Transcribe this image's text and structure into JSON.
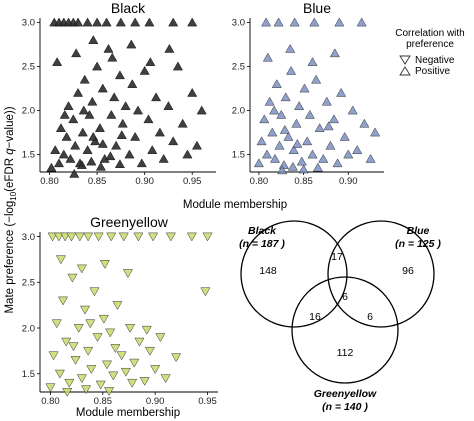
{
  "figure": {
    "ylabel_main": "Mate preference (−log",
    "ylabel_sub": "10",
    "ylabel_end": "(eFDR ",
    "ylabel_q": "q",
    "ylabel_tail": "−value))",
    "xlabel_top": "Module membership",
    "xlabel_bottom": "Module membership"
  },
  "legend": {
    "title_line1": "Correlation with",
    "title_line2": "preference",
    "items": [
      {
        "label": "Negative",
        "symbol": "triangle-down-outline"
      },
      {
        "label": "Positive",
        "symbol": "triangle-up-outline"
      }
    ]
  },
  "chart_data": [
    {
      "type": "scatter",
      "title": "Black",
      "xlabel": "Module membership",
      "ylabel": "Mate preference (−log10(eFDR q−value))",
      "xlim": [
        0.79,
        0.975
      ],
      "ylim": [
        1.3,
        3.05
      ],
      "xticks": [
        "0.80",
        "0.85",
        "0.90",
        "0.95"
      ],
      "yticks": [
        "1.5",
        "2.0",
        "2.5",
        "3.0"
      ],
      "color": "#2b2b2b",
      "points": [
        {
          "x": 0.802,
          "y": 1.35
        },
        {
          "x": 0.806,
          "y": 1.55
        },
        {
          "x": 0.81,
          "y": 1.4
        },
        {
          "x": 0.812,
          "y": 1.8
        },
        {
          "x": 0.815,
          "y": 1.5
        },
        {
          "x": 0.818,
          "y": 1.7
        },
        {
          "x": 0.82,
          "y": 2.05
        },
        {
          "x": 0.822,
          "y": 1.45
        },
        {
          "x": 0.825,
          "y": 1.9
        },
        {
          "x": 0.827,
          "y": 1.6
        },
        {
          "x": 0.83,
          "y": 2.2
        },
        {
          "x": 0.832,
          "y": 1.4
        },
        {
          "x": 0.835,
          "y": 1.75
        },
        {
          "x": 0.837,
          "y": 2.35
        },
        {
          "x": 0.84,
          "y": 1.55
        },
        {
          "x": 0.842,
          "y": 1.95
        },
        {
          "x": 0.845,
          "y": 2.1
        },
        {
          "x": 0.848,
          "y": 1.65
        },
        {
          "x": 0.85,
          "y": 2.5
        },
        {
          "x": 0.853,
          "y": 1.8
        },
        {
          "x": 0.856,
          "y": 2.25
        },
        {
          "x": 0.858,
          "y": 1.45
        },
        {
          "x": 0.862,
          "y": 2.7
        },
        {
          "x": 0.865,
          "y": 1.95
        },
        {
          "x": 0.868,
          "y": 2.15
        },
        {
          "x": 0.87,
          "y": 1.6
        },
        {
          "x": 0.874,
          "y": 2.4
        },
        {
          "x": 0.877,
          "y": 1.85
        },
        {
          "x": 0.88,
          "y": 2.05
        },
        {
          "x": 0.884,
          "y": 1.5
        },
        {
          "x": 0.887,
          "y": 2.3
        },
        {
          "x": 0.89,
          "y": 1.7
        },
        {
          "x": 0.893,
          "y": 2.0
        },
        {
          "x": 0.897,
          "y": 1.4
        },
        {
          "x": 0.9,
          "y": 2.45
        },
        {
          "x": 0.904,
          "y": 1.9
        },
        {
          "x": 0.908,
          "y": 1.55
        },
        {
          "x": 0.912,
          "y": 2.15
        },
        {
          "x": 0.916,
          "y": 1.75
        },
        {
          "x": 0.92,
          "y": 1.45
        },
        {
          "x": 0.925,
          "y": 2.05
        },
        {
          "x": 0.93,
          "y": 1.65
        },
        {
          "x": 0.935,
          "y": 2.5
        },
        {
          "x": 0.94,
          "y": 1.85
        },
        {
          "x": 0.945,
          "y": 1.5
        },
        {
          "x": 0.95,
          "y": 2.2
        },
        {
          "x": 0.955,
          "y": 1.6
        },
        {
          "x": 0.96,
          "y": 2.0
        },
        {
          "x": 0.808,
          "y": 2.55
        },
        {
          "x": 0.828,
          "y": 2.65
        },
        {
          "x": 0.846,
          "y": 2.8
        },
        {
          "x": 0.866,
          "y": 2.6
        },
        {
          "x": 0.886,
          "y": 2.75
        },
        {
          "x": 0.906,
          "y": 2.55
        },
        {
          "x": 0.926,
          "y": 2.7
        },
        {
          "x": 0.805,
          "y": 3.0
        },
        {
          "x": 0.81,
          "y": 3.0
        },
        {
          "x": 0.815,
          "y": 3.0
        },
        {
          "x": 0.82,
          "y": 3.0
        },
        {
          "x": 0.825,
          "y": 3.0
        },
        {
          "x": 0.83,
          "y": 3.0
        },
        {
          "x": 0.84,
          "y": 3.0
        },
        {
          "x": 0.85,
          "y": 3.0
        },
        {
          "x": 0.86,
          "y": 3.0
        },
        {
          "x": 0.875,
          "y": 3.0
        },
        {
          "x": 0.89,
          "y": 3.0
        },
        {
          "x": 0.905,
          "y": 3.0
        },
        {
          "x": 0.93,
          "y": 3.0
        },
        {
          "x": 0.95,
          "y": 3.0
        },
        {
          "x": 0.834,
          "y": 1.38
        },
        {
          "x": 0.844,
          "y": 1.42
        },
        {
          "x": 0.854,
          "y": 1.36
        },
        {
          "x": 0.864,
          "y": 1.48
        },
        {
          "x": 0.874,
          "y": 1.39
        },
        {
          "x": 0.816,
          "y": 1.95
        },
        {
          "x": 0.826,
          "y": 1.28
        },
        {
          "x": 0.836,
          "y": 2.0
        },
        {
          "x": 0.846,
          "y": 1.7
        },
        {
          "x": 0.856,
          "y": 1.62
        },
        {
          "x": 0.876,
          "y": 1.72
        }
      ]
    },
    {
      "type": "scatter",
      "title": "Blue",
      "xlabel": "Module membership",
      "ylabel": "",
      "xlim": [
        0.79,
        0.94
      ],
      "ylim": [
        1.3,
        3.05
      ],
      "xticks": [
        "0.80",
        "0.85",
        "0.90"
      ],
      "yticks": [
        "1.5",
        "2.0",
        "2.5",
        "3.0"
      ],
      "color": "#7c8fc4",
      "points": [
        {
          "x": 0.8,
          "y": 1.4
        },
        {
          "x": 0.803,
          "y": 1.65
        },
        {
          "x": 0.806,
          "y": 1.9
        },
        {
          "x": 0.809,
          "y": 1.5
        },
        {
          "x": 0.812,
          "y": 2.1
        },
        {
          "x": 0.815,
          "y": 1.75
        },
        {
          "x": 0.818,
          "y": 1.45
        },
        {
          "x": 0.82,
          "y": 2.3
        },
        {
          "x": 0.823,
          "y": 1.6
        },
        {
          "x": 0.825,
          "y": 1.95
        },
        {
          "x": 0.828,
          "y": 1.38
        },
        {
          "x": 0.83,
          "y": 2.15
        },
        {
          "x": 0.833,
          "y": 1.7
        },
        {
          "x": 0.836,
          "y": 2.45
        },
        {
          "x": 0.839,
          "y": 1.55
        },
        {
          "x": 0.842,
          "y": 1.85
        },
        {
          "x": 0.845,
          "y": 2.05
        },
        {
          "x": 0.848,
          "y": 1.42
        },
        {
          "x": 0.851,
          "y": 2.25
        },
        {
          "x": 0.854,
          "y": 1.65
        },
        {
          "x": 0.857,
          "y": 1.95
        },
        {
          "x": 0.86,
          "y": 1.5
        },
        {
          "x": 0.864,
          "y": 2.35
        },
        {
          "x": 0.868,
          "y": 1.8
        },
        {
          "x": 0.872,
          "y": 1.45
        },
        {
          "x": 0.876,
          "y": 2.1
        },
        {
          "x": 0.88,
          "y": 1.6
        },
        {
          "x": 0.884,
          "y": 1.9
        },
        {
          "x": 0.888,
          "y": 1.4
        },
        {
          "x": 0.892,
          "y": 2.2
        },
        {
          "x": 0.896,
          "y": 1.7
        },
        {
          "x": 0.9,
          "y": 1.5
        },
        {
          "x": 0.905,
          "y": 2.0
        },
        {
          "x": 0.91,
          "y": 1.55
        },
        {
          "x": 0.918,
          "y": 1.85
        },
        {
          "x": 0.925,
          "y": 1.45
        },
        {
          "x": 0.93,
          "y": 1.75
        },
        {
          "x": 0.81,
          "y": 2.6
        },
        {
          "x": 0.835,
          "y": 2.7
        },
        {
          "x": 0.86,
          "y": 2.55
        },
        {
          "x": 0.885,
          "y": 2.65
        },
        {
          "x": 0.808,
          "y": 3.0
        },
        {
          "x": 0.822,
          "y": 3.0
        },
        {
          "x": 0.84,
          "y": 3.0
        },
        {
          "x": 0.862,
          "y": 3.0
        },
        {
          "x": 0.89,
          "y": 3.0
        },
        {
          "x": 0.915,
          "y": 3.0
        },
        {
          "x": 0.826,
          "y": 1.32
        },
        {
          "x": 0.838,
          "y": 1.36
        },
        {
          "x": 0.85,
          "y": 1.33
        },
        {
          "x": 0.817,
          "y": 2.0
        },
        {
          "x": 0.829,
          "y": 1.78
        },
        {
          "x": 0.843,
          "y": 1.62
        },
        {
          "x": 0.866,
          "y": 1.35
        },
        {
          "x": 0.878,
          "y": 1.82
        }
      ]
    },
    {
      "type": "scatter",
      "title": "Greenyellow",
      "xlabel": "Module membership",
      "ylabel": "",
      "xlim": [
        0.79,
        0.96
      ],
      "ylim": [
        1.3,
        3.05
      ],
      "xticks": [
        "0.80",
        "0.85",
        "0.90",
        "0.95"
      ],
      "yticks": [
        "1.5",
        "2.0",
        "2.5",
        "3.0"
      ],
      "color": "#c8d96a",
      "points": [
        {
          "x": 0.8,
          "y": 1.35
        },
        {
          "x": 0.803,
          "y": 1.7
        },
        {
          "x": 0.806,
          "y": 2.05
        },
        {
          "x": 0.809,
          "y": 1.5
        },
        {
          "x": 0.812,
          "y": 2.3
        },
        {
          "x": 0.815,
          "y": 1.85
        },
        {
          "x": 0.818,
          "y": 1.4
        },
        {
          "x": 0.821,
          "y": 2.55
        },
        {
          "x": 0.824,
          "y": 1.65
        },
        {
          "x": 0.827,
          "y": 2.0
        },
        {
          "x": 0.83,
          "y": 1.45
        },
        {
          "x": 0.833,
          "y": 2.2
        },
        {
          "x": 0.836,
          "y": 1.75
        },
        {
          "x": 0.839,
          "y": 1.55
        },
        {
          "x": 0.842,
          "y": 2.4
        },
        {
          "x": 0.845,
          "y": 1.9
        },
        {
          "x": 0.848,
          "y": 1.38
        },
        {
          "x": 0.851,
          "y": 2.1
        },
        {
          "x": 0.854,
          "y": 1.6
        },
        {
          "x": 0.857,
          "y": 1.95
        },
        {
          "x": 0.86,
          "y": 1.48
        },
        {
          "x": 0.864,
          "y": 2.25
        },
        {
          "x": 0.868,
          "y": 1.7
        },
        {
          "x": 0.872,
          "y": 1.52
        },
        {
          "x": 0.876,
          "y": 2.0
        },
        {
          "x": 0.88,
          "y": 1.62
        },
        {
          "x": 0.885,
          "y": 1.85
        },
        {
          "x": 0.89,
          "y": 1.42
        },
        {
          "x": 0.895,
          "y": 1.75
        },
        {
          "x": 0.9,
          "y": 1.55
        },
        {
          "x": 0.905,
          "y": 1.9
        },
        {
          "x": 0.91,
          "y": 1.45
        },
        {
          "x": 0.92,
          "y": 1.68
        },
        {
          "x": 0.948,
          "y": 2.4
        },
        {
          "x": 0.81,
          "y": 2.75
        },
        {
          "x": 0.83,
          "y": 2.65
        },
        {
          "x": 0.852,
          "y": 2.7
        },
        {
          "x": 0.874,
          "y": 2.6
        },
        {
          "x": 0.802,
          "y": 3.0
        },
        {
          "x": 0.808,
          "y": 3.0
        },
        {
          "x": 0.814,
          "y": 3.0
        },
        {
          "x": 0.82,
          "y": 3.0
        },
        {
          "x": 0.828,
          "y": 3.0
        },
        {
          "x": 0.836,
          "y": 3.0
        },
        {
          "x": 0.846,
          "y": 3.0
        },
        {
          "x": 0.858,
          "y": 3.0
        },
        {
          "x": 0.87,
          "y": 3.0
        },
        {
          "x": 0.884,
          "y": 3.0
        },
        {
          "x": 0.898,
          "y": 3.0
        },
        {
          "x": 0.915,
          "y": 3.0
        },
        {
          "x": 0.935,
          "y": 3.0
        },
        {
          "x": 0.95,
          "y": 3.0
        },
        {
          "x": 0.816,
          "y": 1.3
        },
        {
          "x": 0.834,
          "y": 1.33
        },
        {
          "x": 0.856,
          "y": 1.31
        },
        {
          "x": 0.822,
          "y": 1.8
        },
        {
          "x": 0.838,
          "y": 2.05
        },
        {
          "x": 0.862,
          "y": 1.78
        },
        {
          "x": 0.878,
          "y": 1.4
        },
        {
          "x": 0.892,
          "y": 1.98
        }
      ]
    },
    {
      "type": "venn",
      "sets": [
        {
          "label": "Black",
          "n_text": "(n = 187 )"
        },
        {
          "label": "Blue",
          "n_text": "(n = 125 )"
        },
        {
          "label": "Greenyellow",
          "n_text": "(n = 140 )"
        }
      ],
      "regions": {
        "black_only": "148",
        "blue_only": "96",
        "greenyellow_only": "112",
        "black_blue": "17",
        "black_greenyellow": "16",
        "blue_greenyellow": "6",
        "all_three": "6"
      }
    }
  ]
}
